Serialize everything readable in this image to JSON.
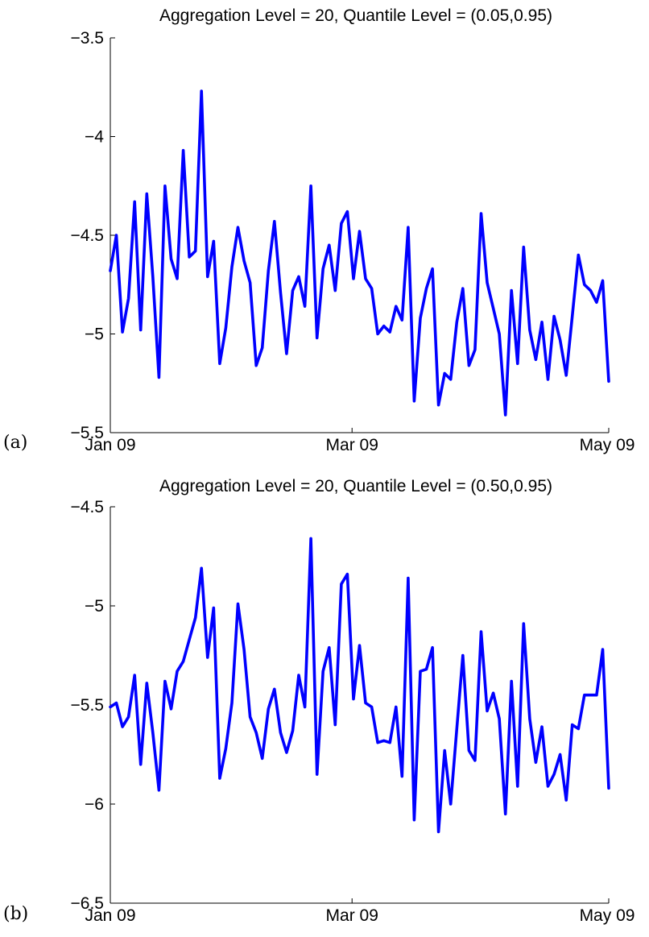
{
  "chart_data": [
    {
      "type": "line",
      "panel_label": "(a)",
      "title": "Aggregation Level = 20, Quantile Level = (0.05,0.95)",
      "xlabel": "",
      "ylabel": "",
      "ylim": [
        -5.5,
        -3.5
      ],
      "yticks": [
        -3.5,
        -4,
        -4.5,
        -5,
        -5.5
      ],
      "ytick_labels": [
        "−3.5",
        "−4",
        "−4.5",
        "−5",
        "−5.5"
      ],
      "xlim": [
        0,
        100
      ],
      "xticks": [
        0,
        48.5,
        100
      ],
      "xtick_labels": [
        "Jan 09",
        "Mar 09",
        "May 09"
      ],
      "grid": false,
      "series": [
        {
          "color": "#0000ff",
          "values": [
            -4.68,
            -4.5,
            -4.99,
            -4.82,
            -4.33,
            -4.98,
            -4.29,
            -4.71,
            -5.22,
            -4.25,
            -4.62,
            -4.72,
            -4.07,
            -4.61,
            -4.58,
            -3.77,
            -4.71,
            -4.53,
            -5.15,
            -4.97,
            -4.66,
            -4.46,
            -4.63,
            -4.74,
            -5.16,
            -5.07,
            -4.68,
            -4.43,
            -4.79,
            -5.1,
            -4.78,
            -4.71,
            -4.86,
            -4.25,
            -5.02,
            -4.67,
            -4.55,
            -4.78,
            -4.44,
            -4.38,
            -4.72,
            -4.48,
            -4.72,
            -4.77,
            -5.0,
            -4.96,
            -4.99,
            -4.86,
            -4.93,
            -4.46,
            -5.34,
            -4.92,
            -4.77,
            -4.67,
            -5.36,
            -5.2,
            -5.23,
            -4.94,
            -4.77,
            -5.16,
            -5.08,
            -4.39,
            -4.74,
            -4.87,
            -5.0,
            -5.41,
            -4.78,
            -5.15,
            -4.56,
            -4.98,
            -5.13,
            -4.94,
            -5.23,
            -4.91,
            -5.03,
            -5.21,
            -4.91,
            -4.6,
            -4.75,
            -4.78,
            -4.84,
            -4.73,
            -5.24
          ]
        }
      ]
    },
    {
      "type": "line",
      "panel_label": "(b)",
      "title": "Aggregation Level = 20, Quantile Level = (0.50,0.95)",
      "xlabel": "",
      "ylabel": "",
      "ylim": [
        -6.5,
        -4.5
      ],
      "yticks": [
        -4.5,
        -5,
        -5.5,
        -6,
        -6.5
      ],
      "ytick_labels": [
        "−4.5",
        "−5",
        "−5.5",
        "−6",
        "−6.5"
      ],
      "xlim": [
        0,
        100
      ],
      "xticks": [
        0,
        48.5,
        100
      ],
      "xtick_labels": [
        "Jan 09",
        "Mar 09",
        "May 09"
      ],
      "grid": false,
      "series": [
        {
          "color": "#0000ff",
          "values": [
            -5.51,
            -5.49,
            -5.61,
            -5.56,
            -5.35,
            -5.8,
            -5.39,
            -5.64,
            -5.93,
            -5.38,
            -5.52,
            -5.33,
            -5.28,
            -5.17,
            -5.06,
            -4.81,
            -5.26,
            -5.01,
            -5.87,
            -5.72,
            -5.49,
            -4.99,
            -5.22,
            -5.56,
            -5.64,
            -5.77,
            -5.52,
            -5.42,
            -5.64,
            -5.74,
            -5.63,
            -5.35,
            -5.51,
            -4.66,
            -5.85,
            -5.33,
            -5.21,
            -5.6,
            -4.89,
            -4.84,
            -5.47,
            -5.2,
            -5.49,
            -5.51,
            -5.69,
            -5.68,
            -5.69,
            -5.51,
            -5.86,
            -4.86,
            -6.08,
            -5.33,
            -5.32,
            -5.21,
            -6.14,
            -5.73,
            -6.0,
            -5.62,
            -5.25,
            -5.73,
            -5.78,
            -5.13,
            -5.53,
            -5.44,
            -5.57,
            -6.05,
            -5.38,
            -5.91,
            -5.09,
            -5.57,
            -5.79,
            -5.61,
            -5.91,
            -5.85,
            -5.75,
            -5.98,
            -5.6,
            -5.62,
            -5.45,
            -5.45,
            -5.45,
            -5.22,
            -5.92
          ]
        }
      ]
    }
  ]
}
